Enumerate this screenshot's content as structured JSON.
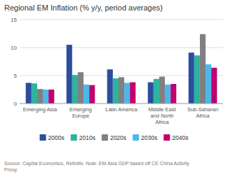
{
  "chart_data": {
    "type": "bar",
    "title": "Regional EM Inflation (% y/y, period averages)",
    "categories": [
      "Emerging Asia",
      "Emerging\nEurope",
      "Latin America",
      "Middle East\nand North\nAfrica",
      "Sub-Saharan\nAfrica"
    ],
    "series": [
      {
        "name": "2000s",
        "color": "#2b4d9e",
        "values": [
          3.7,
          10.5,
          6.1,
          3.8,
          9.1
        ]
      },
      {
        "name": "2010s",
        "color": "#2db39e",
        "values": [
          3.6,
          5.1,
          4.5,
          4.4,
          8.6
        ]
      },
      {
        "name": "2020s",
        "color": "#808080",
        "values": [
          2.6,
          5.6,
          4.7,
          4.8,
          12.4
        ]
      },
      {
        "name": "2030s",
        "color": "#4db8e8",
        "values": [
          2.5,
          3.4,
          3.7,
          3.4,
          7.0
        ]
      },
      {
        "name": "2040s",
        "color": "#c0006e",
        "values": [
          2.5,
          3.3,
          3.8,
          3.5,
          6.4
        ]
      }
    ],
    "ylim": [
      0,
      15
    ],
    "yticks": [
      0,
      5,
      10,
      15
    ],
    "grid": true,
    "legend": "bottom",
    "annotations": [
      "Source: Capital Economics, Refinitiv. Note: EM Asia GDP based off CE China Activity\nProxy."
    ]
  }
}
